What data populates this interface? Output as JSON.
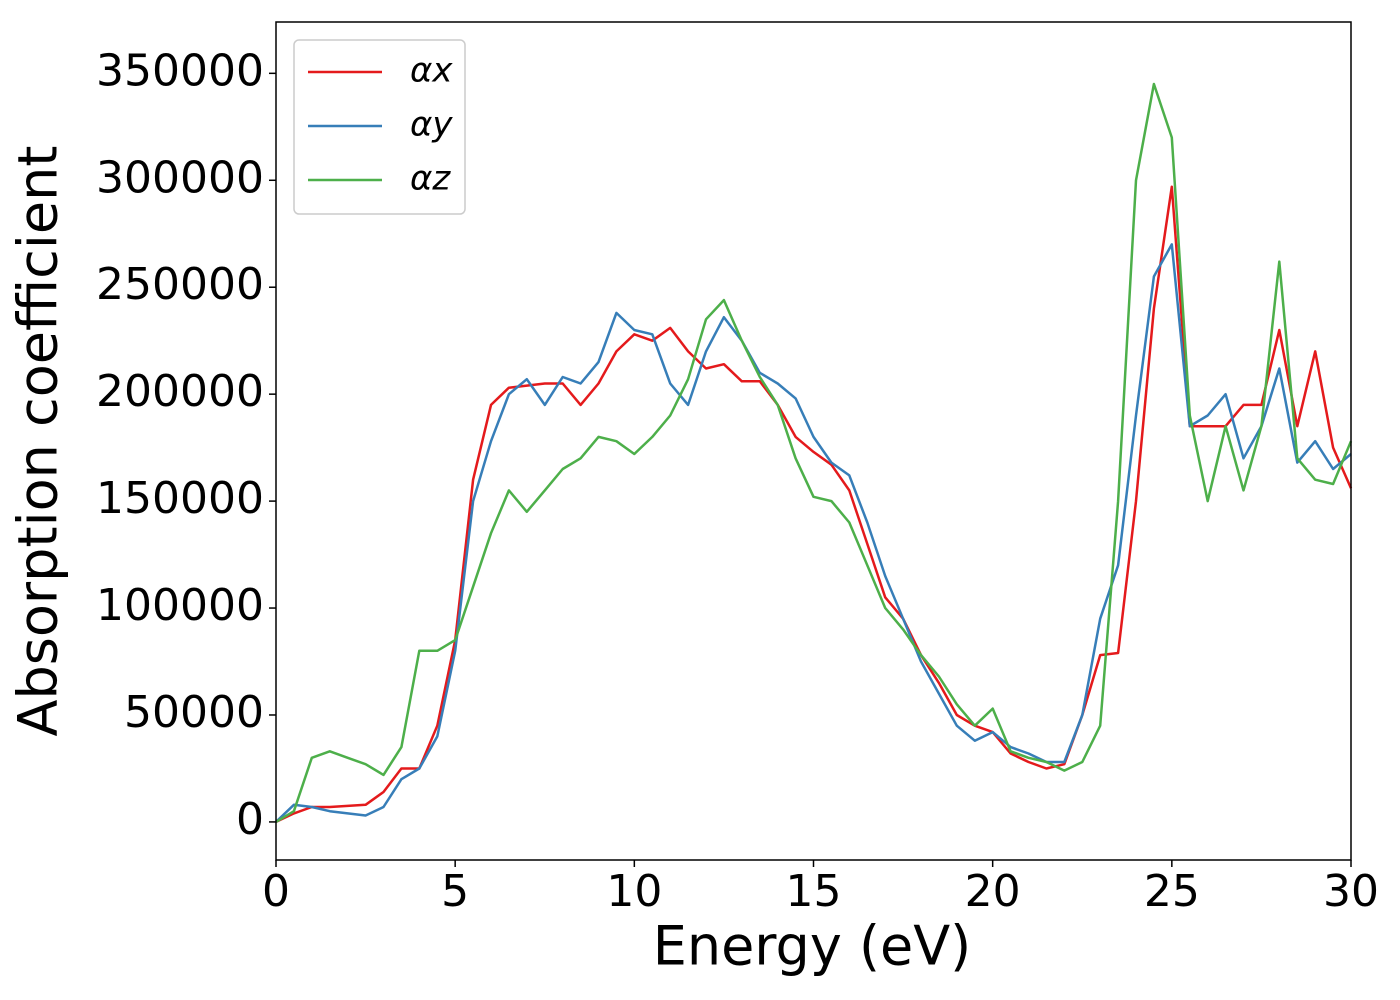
{
  "chart_data": {
    "type": "line",
    "xlabel": "Energy (eV)",
    "ylabel": "Absorption coefficient",
    "x": [
      0,
      0.5,
      1,
      1.5,
      2,
      2.5,
      3,
      3.5,
      4,
      4.5,
      5,
      5.5,
      6,
      6.5,
      7,
      7.5,
      8,
      8.5,
      9,
      9.5,
      10,
      10.5,
      11,
      11.5,
      12,
      12.5,
      13,
      13.5,
      14,
      14.5,
      15,
      15.5,
      16,
      16.5,
      17,
      17.5,
      18,
      18.5,
      19,
      19.5,
      20,
      20.5,
      21,
      21.5,
      22,
      22.5,
      23,
      23.5,
      24,
      24.5,
      25,
      25.5,
      26,
      26.5,
      27,
      27.5,
      28,
      28.5,
      29,
      29.5,
      30
    ],
    "series": [
      {
        "name": "αx",
        "color": "#e41a1c",
        "values": [
          0,
          4000,
          7000,
          7000,
          7500,
          8000,
          14000,
          25000,
          25000,
          45000,
          85000,
          160000,
          195000,
          203000,
          204000,
          205000,
          205000,
          195000,
          205000,
          220000,
          228000,
          225000,
          231000,
          220000,
          212000,
          214000,
          206000,
          206000,
          195000,
          180000,
          173000,
          167000,
          155000,
          130000,
          105000,
          95000,
          78000,
          65000,
          50000,
          45000,
          42000,
          32000,
          28000,
          25000,
          27000,
          50000,
          78000,
          79000,
          150000,
          240000,
          297000,
          185000,
          185000,
          185000,
          195000,
          195000,
          230000,
          185000,
          220000,
          175000,
          156000
        ]
      },
      {
        "name": "αy",
        "color": "#377eb8",
        "values": [
          0,
          8000,
          7000,
          5000,
          4000,
          3000,
          7000,
          20000,
          25000,
          40000,
          80000,
          150000,
          178000,
          200000,
          207000,
          195000,
          208000,
          205000,
          215000,
          238000,
          230000,
          228000,
          205000,
          195000,
          220000,
          236000,
          225000,
          210000,
          205000,
          198000,
          180000,
          168000,
          162000,
          140000,
          115000,
          95000,
          75000,
          60000,
          45000,
          38000,
          42000,
          35000,
          32000,
          28000,
          28000,
          50000,
          95000,
          120000,
          190000,
          255000,
          270000,
          185000,
          190000,
          200000,
          170000,
          185000,
          212000,
          168000,
          178000,
          165000,
          172000
        ]
      },
      {
        "name": "αz",
        "color": "#4daf4a",
        "values": [
          0,
          5000,
          30000,
          33000,
          30000,
          27000,
          22000,
          35000,
          80000,
          80000,
          85000,
          110000,
          135000,
          155000,
          145000,
          155000,
          165000,
          170000,
          180000,
          178000,
          172000,
          180000,
          190000,
          207000,
          235000,
          244000,
          225000,
          208000,
          195000,
          170000,
          152000,
          150000,
          140000,
          120000,
          100000,
          90000,
          78000,
          68000,
          55000,
          45000,
          53000,
          33000,
          30000,
          28000,
          24000,
          28000,
          45000,
          150000,
          300000,
          345000,
          320000,
          190000,
          150000,
          185000,
          155000,
          185000,
          262000,
          170000,
          160000,
          158000,
          178000
        ]
      }
    ],
    "xlim": [
      0,
      30
    ],
    "xticks": [
      0,
      5,
      10,
      15,
      20,
      25,
      30
    ],
    "ylim": [
      -17800,
      374000
    ],
    "yticks": [
      0,
      50000,
      100000,
      150000,
      200000,
      250000,
      300000,
      350000
    ],
    "legend": "upper left",
    "grid": false
  }
}
